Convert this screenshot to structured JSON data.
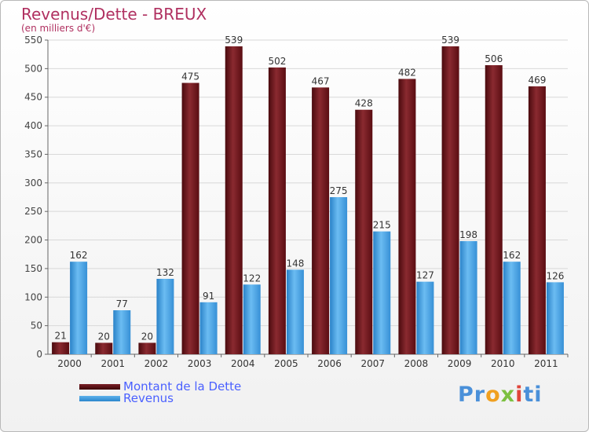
{
  "header": {
    "title": "Revenus/Dette - BREUX",
    "subtitle": "(en milliers d'€)"
  },
  "legend": {
    "debt_label": "Montant de la Dette",
    "revenue_label": "Revenus"
  },
  "logo": {
    "text": "Proxiti"
  },
  "colors": {
    "debt": "#6b1218",
    "revenue": "#3a9ae0",
    "title": "#b03060",
    "legend_text": "#4a60ff"
  },
  "chart_data": {
    "type": "bar",
    "categories": [
      "2000",
      "2001",
      "2002",
      "2003",
      "2004",
      "2005",
      "2006",
      "2007",
      "2008",
      "2009",
      "2010",
      "2011"
    ],
    "series": [
      {
        "name": "Montant de la Dette",
        "values": [
          21,
          20,
          20,
          475,
          539,
          502,
          467,
          428,
          482,
          539,
          506,
          469
        ]
      },
      {
        "name": "Revenus",
        "values": [
          162,
          77,
          132,
          91,
          122,
          148,
          275,
          215,
          127,
          198,
          162,
          126
        ]
      }
    ],
    "title": "Revenus/Dette - BREUX",
    "ylabel": "(en milliers d'€)",
    "ylim": [
      0,
      550
    ],
    "yticks": [
      0,
      50,
      100,
      150,
      200,
      250,
      300,
      350,
      400,
      450,
      500,
      550
    ],
    "grid": true,
    "legend_position": "bottom-left"
  }
}
